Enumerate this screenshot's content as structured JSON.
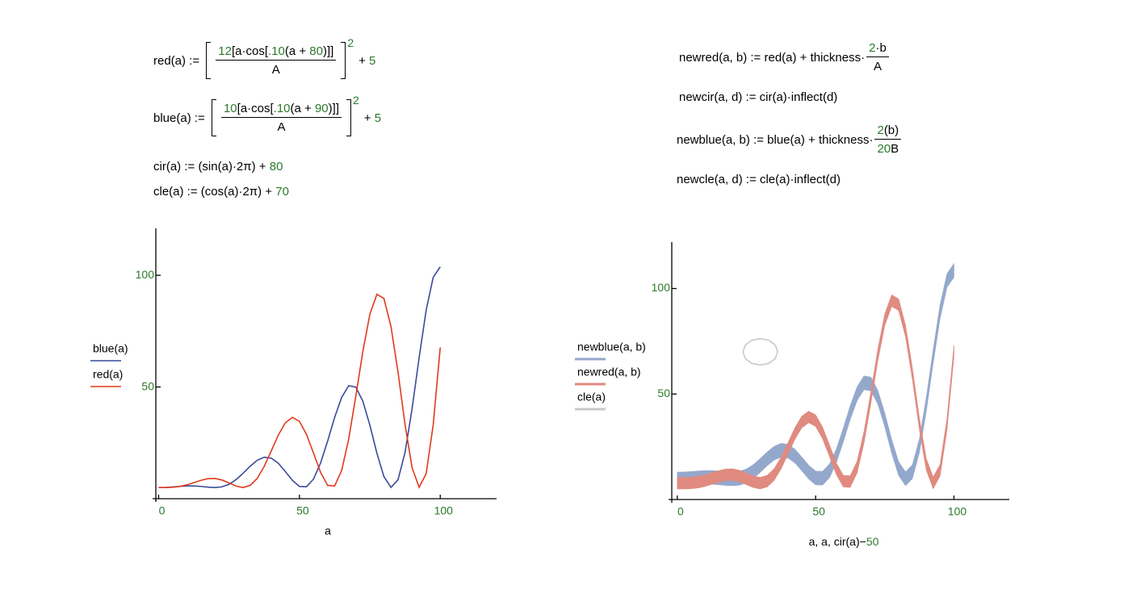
{
  "equations": {
    "red": {
      "lhs": "red(a) :=",
      "num": [
        "12",
        "[a·cos[",
        ".10",
        "(a + ",
        "80",
        ")]]"
      ],
      "den": "A",
      "exp": "2",
      "tail": "+",
      "const": "5"
    },
    "blue": {
      "lhs": "blue(a) :=",
      "num": [
        "10",
        "[a·cos[",
        ".10",
        "(a + ",
        "90",
        ")]]"
      ],
      "den": "A",
      "exp": "2",
      "tail": "+",
      "const": "5"
    },
    "cir": {
      "lhs": "cir(a) :=",
      "rhs": "(sin(a)·2π) +",
      "const": "80"
    },
    "cle": {
      "lhs": "cle(a) :=",
      "rhs": "(cos(a)·2π) +",
      "const": "70"
    },
    "newred": {
      "lhs": "newred(a, b) :=",
      "rhs": "red(a) + thickness·",
      "num": [
        "2",
        "·b"
      ],
      "den": "A"
    },
    "newcir": {
      "lhs": "newcir(a, d) :=",
      "rhs": "cir(a)·inflect(d)"
    },
    "newblue": {
      "lhs": "newblue(a, b) :=",
      "rhs": "blue(a) + thickness·",
      "num": [
        "2",
        "(b)"
      ],
      "den": [
        "20",
        "B"
      ]
    },
    "newcle": {
      "lhs": "newcle(a, d) :=",
      "rhs": "cle(a)·inflect(d)"
    }
  },
  "chart_data": [
    {
      "type": "line",
      "xlabel": "a",
      "x": [
        0,
        2.5,
        5,
        7.5,
        10,
        12.5,
        15,
        17.5,
        20,
        22.5,
        25,
        27.5,
        30,
        32.5,
        35,
        37.5,
        40,
        42.5,
        45,
        47.5,
        50,
        52.5,
        55,
        57.5,
        60,
        62.5,
        65,
        67.5,
        70,
        72.5,
        75,
        77.5,
        80,
        82.5,
        85,
        87.5,
        90,
        92.5,
        95,
        97.5,
        100
      ],
      "series": [
        {
          "name": "blue(a)",
          "color": "#3a4a9a",
          "values": [
            5,
            5.06,
            5.25,
            5.51,
            5.7,
            5.72,
            5.51,
            5.18,
            5.0,
            5.32,
            6.45,
            8.55,
            11.41,
            14.54,
            17.2,
            18.59,
            18.16,
            15.85,
            12.14,
            8.22,
            5.47,
            5.35,
            8.81,
            15.97,
            25.8,
            36.4,
            45.4,
            50.56,
            49.97,
            43.7,
            32.96,
            20.4,
            9.87,
            5.06,
            8.47,
            20.7,
            40.3,
            63.1,
            84.4,
            99.1,
            103.8
          ]
        },
        {
          "name": "red(a)",
          "color": "#e03a1e",
          "values": [
            5,
            5.01,
            5.13,
            5.49,
            6.2,
            7.18,
            8.22,
            8.96,
            9.06,
            8.37,
            7.04,
            5.65,
            5.0,
            5.96,
            9.08,
            14.5,
            21.4,
            28.5,
            34.0,
            36.4,
            34.6,
            28.8,
            20.4,
            11.8,
            5.97,
            5.72,
            12.67,
            26.8,
            45.76,
            65.8,
            82.5,
            91.5,
            89.6,
            77.1,
            56.7,
            33.2,
            13.9,
            5.1,
            11.2,
            33.1,
            67.7
          ]
        }
      ],
      "xlim": [
        -1,
        120
      ],
      "ylim": [
        0,
        121
      ],
      "xticks": [
        0,
        50,
        100
      ],
      "yticks": [
        50,
        100
      ]
    },
    {
      "type": "band",
      "xlabel": [
        "a, a, cir(a)−",
        "50"
      ],
      "x": [
        0,
        2.5,
        5,
        7.5,
        10,
        12.5,
        15,
        17.5,
        20,
        22.5,
        25,
        27.5,
        30,
        32.5,
        35,
        37.5,
        40,
        42.5,
        45,
        47.5,
        50,
        52.5,
        55,
        57.5,
        60,
        62.5,
        65,
        67.5,
        70,
        72.5,
        75,
        77.5,
        80,
        82.5,
        85,
        87.5,
        90,
        92.5,
        95,
        97.5,
        100
      ],
      "series": [
        {
          "name": "newblue(a, b)",
          "color": "#94a8cc",
          "low": [
            6.5,
            6.56,
            6.75,
            7.01,
            7.2,
            7.22,
            7.01,
            6.68,
            6.5,
            6.82,
            7.95,
            10.05,
            12.91,
            16.04,
            18.7,
            20.09,
            19.66,
            17.35,
            13.64,
            9.72,
            6.97,
            6.85,
            10.31,
            17.47,
            27.3,
            37.9,
            46.9,
            52.06,
            51.47,
            45.2,
            34.46,
            21.9,
            11.37,
            6.56,
            9.97,
            22.2,
            41.8,
            64.6,
            85.9,
            100.6,
            105.3
          ],
          "high": [
            13,
            13.06,
            13.25,
            13.51,
            13.7,
            13.72,
            13.51,
            13.18,
            13,
            13.32,
            14.45,
            16.55,
            19.41,
            22.54,
            25.2,
            26.59,
            26.16,
            23.85,
            20.14,
            16.22,
            13.47,
            13.35,
            16.81,
            23.97,
            33.8,
            44.4,
            53.4,
            58.56,
            57.97,
            51.7,
            40.96,
            28.4,
            17.87,
            13.06,
            16.47,
            28.7,
            48.3,
            71.1,
            92.4,
            107.1,
            111.8
          ]
        },
        {
          "name": "newred(a, b)",
          "color": "#e08a80",
          "low": [
            5,
            5.01,
            5.13,
            5.49,
            6.2,
            7.18,
            8.22,
            8.96,
            9.06,
            8.37,
            7.04,
            5.65,
            5.0,
            5.96,
            9.08,
            14.5,
            21.4,
            28.5,
            34.0,
            36.4,
            34.6,
            28.8,
            20.4,
            11.8,
            5.97,
            5.72,
            12.67,
            26.8,
            45.76,
            65.8,
            82.5,
            91.5,
            89.6,
            77.1,
            56.7,
            33.2,
            13.9,
            5.1,
            11.2,
            33.1,
            67.7
          ],
          "high": [
            10.5,
            10.51,
            10.63,
            10.99,
            11.7,
            12.68,
            13.72,
            14.46,
            14.56,
            13.87,
            12.54,
            11.15,
            10.5,
            11.46,
            14.58,
            20,
            26.9,
            34,
            39.5,
            41.9,
            40.1,
            34.3,
            25.9,
            17.3,
            11.47,
            11.22,
            18.17,
            32.3,
            51.26,
            71.3,
            88,
            97,
            95.1,
            82.6,
            62.2,
            38.7,
            19.4,
            10.6,
            16.7,
            38.6,
            73.2
          ]
        },
        {
          "name": "cle(a)",
          "color": "#c8c8c8",
          "type": "line",
          "x": [
            30,
            33.14,
            35.44,
            36.28,
            35.44,
            33.14,
            30,
            26.86,
            24.56,
            23.72,
            24.56,
            26.86,
            30
          ],
          "values": [
            76.28,
            75.44,
            73.14,
            70,
            66.86,
            64.56,
            63.72,
            64.56,
            66.86,
            70,
            73.14,
            75.44,
            76.28
          ]
        }
      ],
      "xlim": [
        -2,
        120
      ],
      "ylim": [
        0,
        122
      ],
      "xticks": [
        0,
        50,
        100
      ],
      "yticks": [
        50,
        100
      ]
    }
  ]
}
